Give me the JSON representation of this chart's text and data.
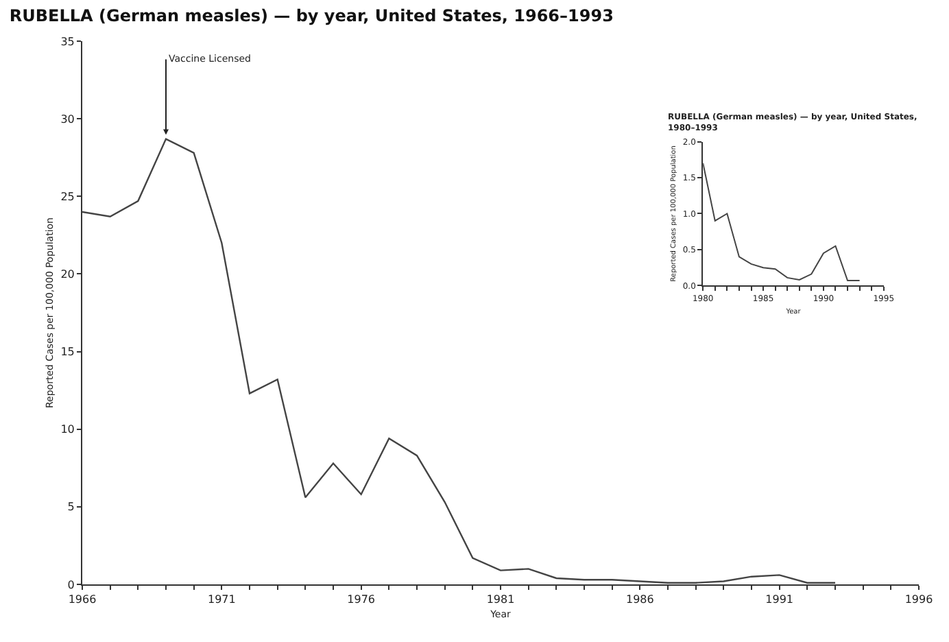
{
  "chart_data": [
    {
      "type": "line",
      "title": "RUBELLA (German measles) — by year, United States, 1966–1993",
      "xlabel": "Year",
      "ylabel": "Reported Cases per 100,000 Population",
      "x": [
        1966,
        1967,
        1968,
        1969,
        1970,
        1971,
        1972,
        1973,
        1974,
        1975,
        1976,
        1977,
        1978,
        1979,
        1980,
        1981,
        1982,
        1983,
        1984,
        1985,
        1986,
        1987,
        1988,
        1989,
        1990,
        1991,
        1992,
        1993
      ],
      "series": [
        {
          "color": "#444444",
          "values": [
            24.0,
            23.7,
            24.7,
            28.7,
            27.8,
            22.0,
            12.3,
            13.2,
            5.6,
            7.8,
            5.8,
            9.4,
            8.3,
            5.3,
            1.7,
            0.9,
            1.0,
            0.4,
            0.3,
            0.3,
            0.2,
            0.1,
            0.1,
            0.2,
            0.5,
            0.6,
            0.1,
            0.1
          ]
        }
      ],
      "xlim": [
        1966,
        1996
      ],
      "ylim": [
        0,
        35
      ],
      "xticks": [
        1966,
        {
          "value": 1967,
          "label": null
        },
        {
          "value": 1968,
          "label": null
        },
        {
          "value": 1969,
          "label": null
        },
        {
          "value": 1970,
          "label": null
        },
        1971,
        {
          "value": 1972,
          "label": null
        },
        {
          "value": 1973,
          "label": null
        },
        {
          "value": 1974,
          "label": null
        },
        {
          "value": 1975,
          "label": null
        },
        1976,
        {
          "value": 1977,
          "label": null
        },
        {
          "value": 1978,
          "label": null
        },
        {
          "value": 1979,
          "label": null
        },
        {
          "value": 1980,
          "label": null
        },
        1981,
        {
          "value": 1982,
          "label": null
        },
        {
          "value": 1983,
          "label": null
        },
        {
          "value": 1984,
          "label": null
        },
        {
          "value": 1985,
          "label": null
        },
        1986,
        {
          "value": 1987,
          "label": null
        },
        {
          "value": 1988,
          "label": null
        },
        {
          "value": 1989,
          "label": null
        },
        {
          "value": 1990,
          "label": null
        },
        1991,
        {
          "value": 1992,
          "label": null
        },
        {
          "value": 1993,
          "label": null
        },
        {
          "value": 1994,
          "label": null
        },
        {
          "value": 1995,
          "label": null
        },
        1996
      ],
      "yticks": [
        0,
        5,
        10,
        15,
        20,
        25,
        30,
        35
      ],
      "annotations": [
        {
          "text": "Vaccine Licensed",
          "x": 1969,
          "y": 28.7
        }
      ],
      "marker": "none",
      "line_style": "solid"
    },
    {
      "type": "line",
      "title": "RUBELLA (German measles) — by year, United States, 1980–1993",
      "xlabel": "Year",
      "ylabel": "Reported Cases per 100,000 Population",
      "x": [
        1980,
        1981,
        1982,
        1983,
        1984,
        1985,
        1986,
        1987,
        1988,
        1989,
        1990,
        1991,
        1992,
        1993
      ],
      "series": [
        {
          "color": "#444444",
          "values": [
            1.7,
            0.9,
            1.0,
            0.4,
            0.3,
            0.25,
            0.23,
            0.11,
            0.08,
            0.16,
            0.45,
            0.55,
            0.07,
            0.07
          ]
        }
      ],
      "xlim": [
        1980,
        1995
      ],
      "ylim": [
        0,
        2.0
      ],
      "xticks": [
        1980,
        {
          "value": 1981,
          "label": null
        },
        {
          "value": 1982,
          "label": null
        },
        {
          "value": 1983,
          "label": null
        },
        {
          "value": 1984,
          "label": null
        },
        1985,
        {
          "value": 1986,
          "label": null
        },
        {
          "value": 1987,
          "label": null
        },
        {
          "value": 1988,
          "label": null
        },
        {
          "value": 1989,
          "label": null
        },
        1990,
        {
          "value": 1991,
          "label": null
        },
        {
          "value": 1992,
          "label": null
        },
        {
          "value": 1993,
          "label": null
        },
        {
          "value": 1994,
          "label": null
        },
        1995
      ],
      "yticks": [
        {
          "value": 0,
          "label": "0.0"
        },
        {
          "value": 0.5,
          "label": "0.5"
        },
        {
          "value": 1.0,
          "label": "1.0"
        },
        {
          "value": 1.5,
          "label": "1.5"
        },
        {
          "value": 2.0,
          "label": "2.0"
        }
      ],
      "marker": "none",
      "line_style": "solid"
    }
  ]
}
